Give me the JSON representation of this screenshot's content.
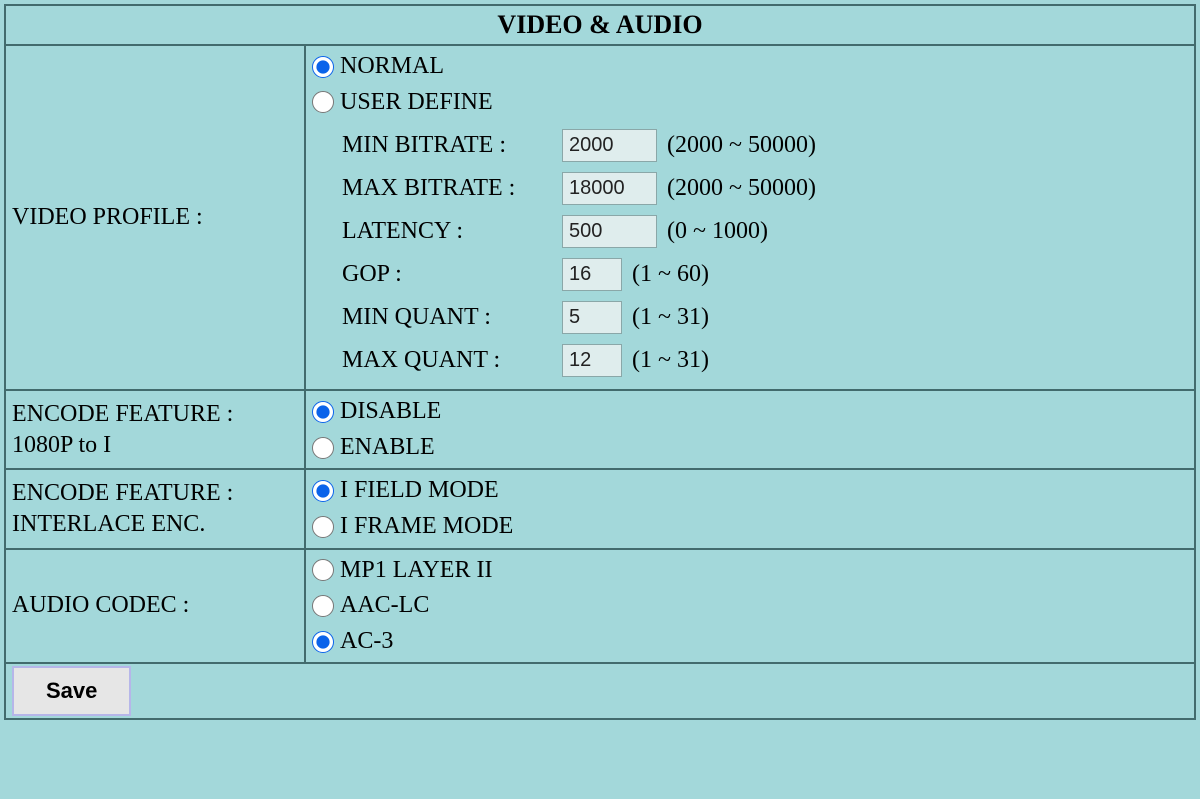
{
  "colors": {
    "background": "#a3d8da",
    "border": "#426b6d",
    "input_bg": "#dfeded",
    "radio_accent": "#0a63ea",
    "button_bg": "#e6e6e6",
    "button_border": "#b6b6e9"
  },
  "header": {
    "title": "VIDEO & AUDIO"
  },
  "video_profile": {
    "label": "VIDEO PROFILE :",
    "options": {
      "normal": {
        "label": "NORMAL",
        "checked": true
      },
      "user_define": {
        "label": "USER DEFINE",
        "checked": false
      }
    },
    "params": {
      "min_bitrate": {
        "label": "MIN BITRATE :",
        "value": "2000",
        "range": "(2000 ~ 50000)"
      },
      "max_bitrate": {
        "label": "MAX BITRATE :",
        "value": "18000",
        "range": "(2000 ~ 50000)"
      },
      "latency": {
        "label": "LATENCY :",
        "value": "500",
        "range": "(0 ~ 1000)"
      },
      "gop": {
        "label": "GOP :",
        "value": "16",
        "range": "(1 ~ 60)"
      },
      "min_quant": {
        "label": "MIN QUANT :",
        "value": "5",
        "range": "(1 ~ 31)"
      },
      "max_quant": {
        "label": "MAX QUANT :",
        "value": "12",
        "range": "(1 ~ 31)"
      }
    }
  },
  "encode_1080p": {
    "label": "ENCODE FEATURE :\n1080P to I",
    "options": {
      "disable": {
        "label": "DISABLE",
        "checked": true
      },
      "enable": {
        "label": "ENABLE",
        "checked": false
      }
    }
  },
  "encode_interlace": {
    "label": "ENCODE FEATURE :\nINTERLACE ENC.",
    "options": {
      "i_field": {
        "label": "I FIELD MODE",
        "checked": true
      },
      "i_frame": {
        "label": "I FRAME MODE",
        "checked": false
      }
    }
  },
  "audio_codec": {
    "label": "AUDIO CODEC :",
    "options": {
      "mp1": {
        "label": "MP1 LAYER II",
        "checked": false
      },
      "aac": {
        "label": "AAC-LC",
        "checked": false
      },
      "ac3": {
        "label": "AC-3",
        "checked": true
      }
    }
  },
  "footer": {
    "save_label": "Save"
  }
}
